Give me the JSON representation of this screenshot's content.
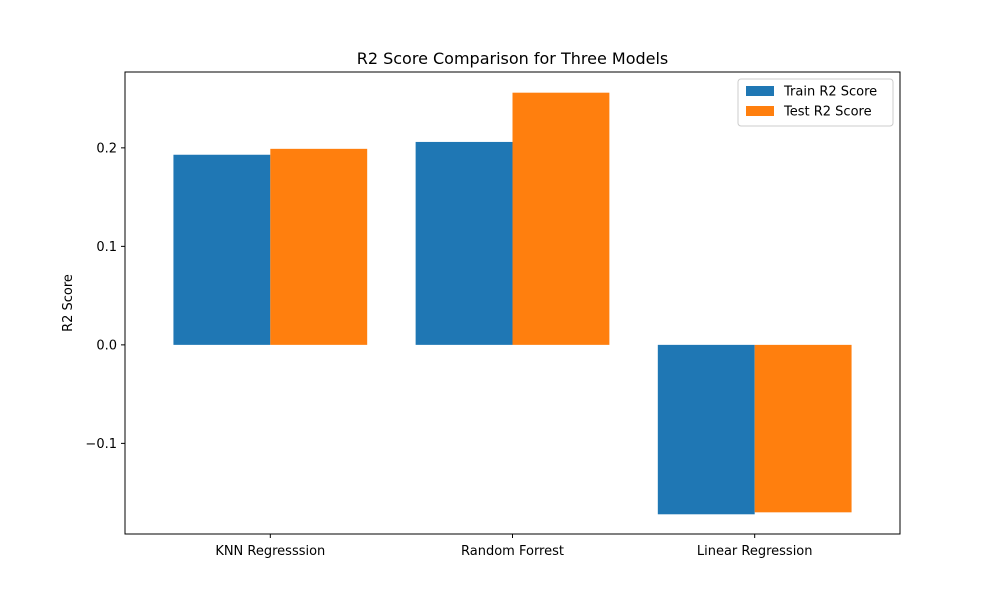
{
  "chart_data": {
    "type": "bar",
    "title": "R2 Score Comparison for Three Models",
    "xlabel": "",
    "ylabel": "R2 Score",
    "categories": [
      "KNN Regresssion",
      "Random Forrest",
      "Linear Regression"
    ],
    "series": [
      {
        "name": "Train R2 Score",
        "color": "#1f77b4",
        "values": [
          0.193,
          0.206,
          -0.172
        ]
      },
      {
        "name": "Test R2 Score",
        "color": "#ff7f0e",
        "values": [
          0.199,
          0.256,
          -0.17
        ]
      }
    ],
    "ylim": [
      -0.192,
      0.277
    ],
    "yticks": [
      -0.1,
      0.0,
      0.1,
      0.2
    ],
    "ytick_labels": [
      "−0.1",
      "0.0",
      "0.1",
      "0.2"
    ],
    "legend_position": "top-right",
    "grid": false
  }
}
